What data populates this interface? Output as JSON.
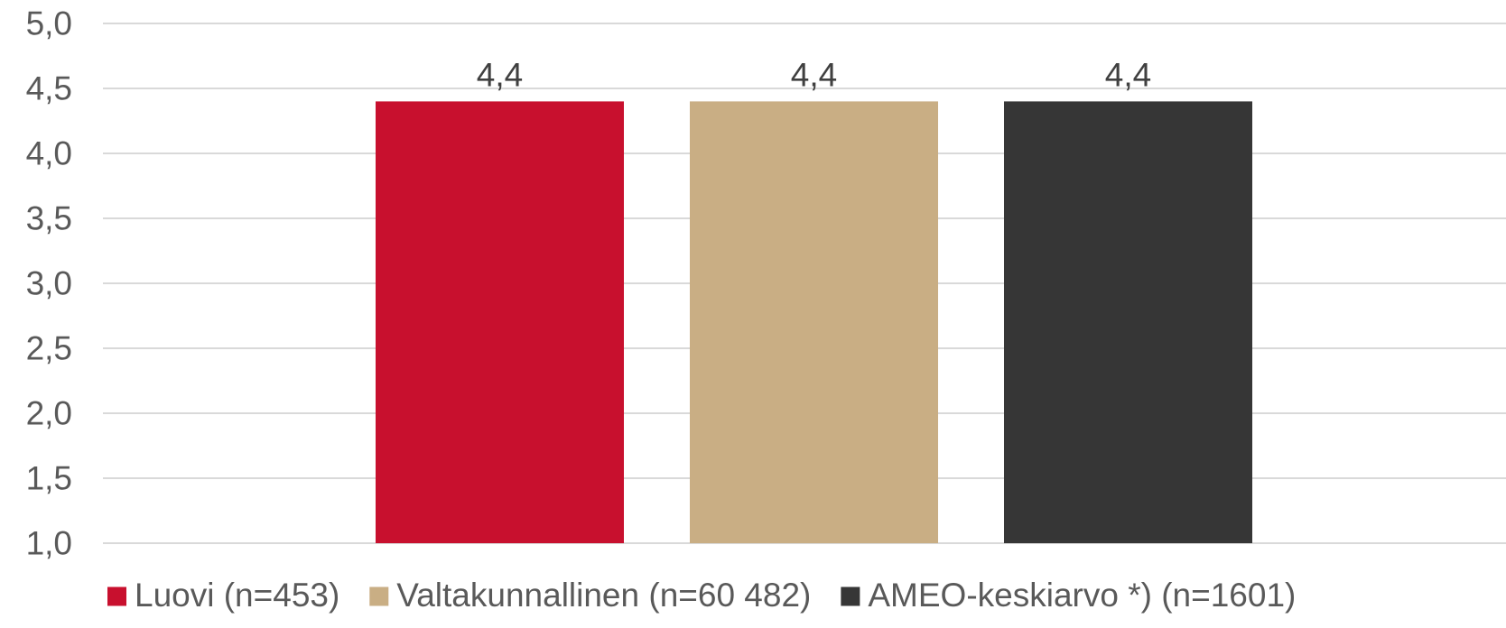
{
  "chart_data": {
    "type": "bar",
    "title": "",
    "xlabel": "",
    "ylabel": "",
    "ylim": [
      1.0,
      5.0
    ],
    "yticks": [
      "1,0",
      "1,5",
      "2,0",
      "2,5",
      "3,0",
      "3,5",
      "4,0",
      "4,5",
      "5,0"
    ],
    "grid": true,
    "legend_position": "bottom",
    "series": [
      {
        "name": "Luovi (n=453)",
        "value": 4.4,
        "label": "4,4",
        "color": "#C8102E"
      },
      {
        "name": "Valtakunnallinen (n=60 482)",
        "value": 4.4,
        "label": "4,4",
        "color": "#C9AE84"
      },
      {
        "name": "AMEO-keskiarvo *) (n=1601)",
        "value": 4.4,
        "label": "4,4",
        "color": "#363636"
      }
    ]
  }
}
